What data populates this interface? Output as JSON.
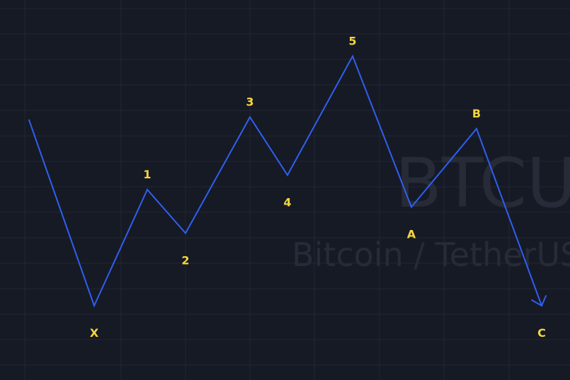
{
  "watermark": {
    "symbol": "BTCUSDT",
    "name": "Bitcoin / TetherUS"
  },
  "colors": {
    "background": "#161a25",
    "grid": "#232734",
    "line": "#2f5ff0",
    "label": "#f5d63d",
    "watermark": "#262b37"
  },
  "chart_data": {
    "type": "line",
    "title": "",
    "xlabel": "",
    "ylabel": "",
    "grid": true,
    "series": [
      {
        "points": [
          {
            "label": "",
            "x": 0,
            "y": 64
          },
          {
            "label": "X",
            "x": 1,
            "y": 0
          },
          {
            "label": "1",
            "x": 2,
            "y": 40
          },
          {
            "label": "2",
            "x": 3,
            "y": 25
          },
          {
            "label": "3",
            "x": 4,
            "y": 65
          },
          {
            "label": "4",
            "x": 5,
            "y": 45
          },
          {
            "label": "5",
            "x": 6,
            "y": 86
          },
          {
            "label": "A",
            "x": 7,
            "y": 34
          },
          {
            "label": "B",
            "x": 8,
            "y": 61
          },
          {
            "label": "C",
            "x": 9,
            "y": 0
          }
        ]
      }
    ]
  }
}
